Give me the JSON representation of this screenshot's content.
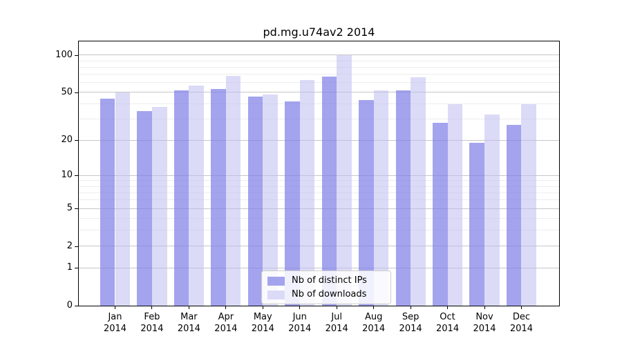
{
  "title": "pd.mg.u74av2 2014",
  "legend": {
    "items": [
      {
        "label": "Nb of distinct IPs"
      },
      {
        "label": "Nb of downloads"
      }
    ]
  },
  "colors": {
    "distinct_ips_bar": "rgba(128,128,232,0.72)",
    "downloads_bar": "rgba(190,190,240,0.55)",
    "distinct_ips_swatch": "#a4a4ee",
    "downloads_swatch": "#dbdbf7",
    "grid_major": "#c6c6c6",
    "grid_minor": "#ededed",
    "axis": "#000000"
  },
  "chart_data": {
    "type": "bar",
    "title": "pd.mg.u74av2 2014",
    "categories": [
      "Jan 2014",
      "Feb 2014",
      "Mar 2014",
      "Apr 2014",
      "May 2014",
      "Jun 2014",
      "Jul 2014",
      "Aug 2014",
      "Sep 2014",
      "Oct 2014",
      "Nov 2014",
      "Dec 2014"
    ],
    "month_labels": [
      "Jan",
      "Feb",
      "Mar",
      "Apr",
      "May",
      "Jun",
      "Jul",
      "Aug",
      "Sep",
      "Oct",
      "Nov",
      "Dec"
    ],
    "year_label": "2014",
    "series": [
      {
        "name": "Nb of distinct IPs",
        "values": [
          44,
          35,
          52,
          53,
          46,
          42,
          67,
          43,
          52,
          28,
          19,
          27
        ]
      },
      {
        "name": "Nb of downloads",
        "values": [
          50,
          38,
          57,
          68,
          48,
          63,
          100,
          52,
          66,
          40,
          33,
          40
        ]
      }
    ],
    "y_scale": "log10(1+x)",
    "y_ticks": [
      0,
      1,
      2,
      5,
      10,
      20,
      50,
      100
    ],
    "y_minor_ticks": [
      3,
      4,
      6,
      7,
      8,
      9,
      30,
      40,
      60,
      70,
      80,
      90
    ],
    "ylim": [
      0,
      129
    ],
    "grid": true,
    "legend_position": "lower center"
  }
}
